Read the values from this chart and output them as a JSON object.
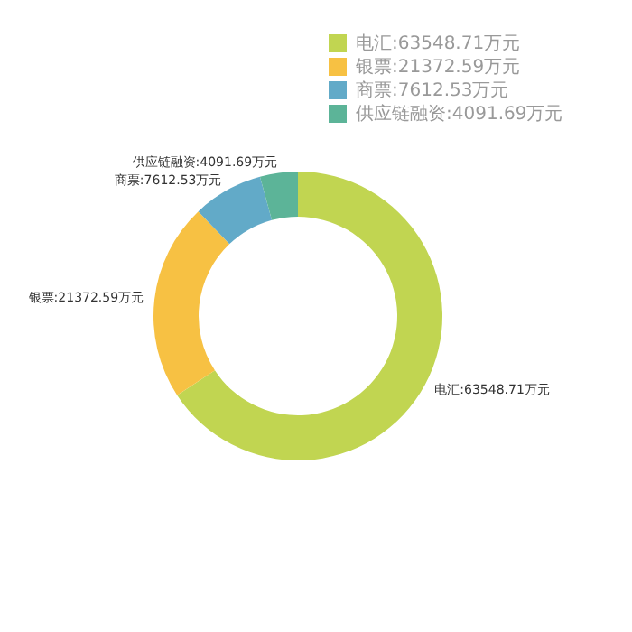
{
  "chart_data": {
    "type": "donut",
    "categories": [
      "电汇:63548.71万元",
      "银票:21372.59万元",
      "商票:7612.53万元",
      "供应链融资:4091.69万元"
    ],
    "values": [
      63548.71,
      21372.59,
      7612.53,
      4091.69
    ],
    "colors": [
      "#c1d551",
      "#f7c143",
      "#62aac8",
      "#5cb498"
    ],
    "legend": "top right"
  }
}
